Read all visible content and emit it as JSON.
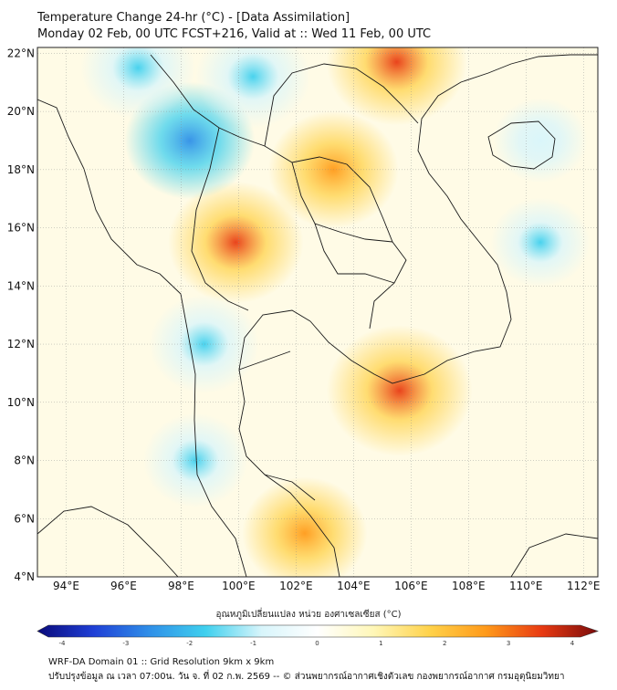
{
  "title": {
    "line1": "Temperature Change 24-hr (°C) - [Data Assimilation]",
    "line2": "Monday 02 Feb, 00 UTC FCST+216, Valid at :: Wed 11 Feb, 00 UTC"
  },
  "map": {
    "lon_ticks": [
      "94°E",
      "96°E",
      "98°E",
      "100°E",
      "102°E",
      "104°E",
      "106°E",
      "108°E",
      "110°E",
      "112°E"
    ],
    "lat_ticks": [
      "22°N",
      "20°N",
      "18°N",
      "16°N",
      "14°N",
      "12°N",
      "10°N",
      "8°N",
      "6°N",
      "4°N"
    ],
    "lon_range": [
      93,
      112.5
    ],
    "lat_range": [
      4,
      22.2
    ],
    "anomalies": [
      {
        "lon": 105.5,
        "lat": 21.7,
        "value": 3.0
      },
      {
        "lon": 103.3,
        "lat": 18.0,
        "value": 2.6
      },
      {
        "lon": 99.9,
        "lat": 15.5,
        "value": 2.8
      },
      {
        "lon": 105.6,
        "lat": 10.4,
        "value": 3.2
      },
      {
        "lon": 102.3,
        "lat": 5.5,
        "value": 2.4
      },
      {
        "lon": 98.3,
        "lat": 19.0,
        "value": -2.6
      },
      {
        "lon": 96.5,
        "lat": 21.5,
        "value": -2.0
      },
      {
        "lon": 100.5,
        "lat": 21.2,
        "value": -2.0
      },
      {
        "lon": 98.8,
        "lat": 12.0,
        "value": -1.8
      },
      {
        "lon": 98.5,
        "lat": 8.0,
        "value": -1.6
      },
      {
        "lon": 110.5,
        "lat": 15.5,
        "value": -1.4
      },
      {
        "lon": 110.5,
        "lat": 19.0,
        "value": -1.2
      }
    ]
  },
  "colorbar": {
    "title": "อุณหภูมิเปลี่ยนแปลง หน่วย องศาเซลเซียส (°C)",
    "ticks": [
      "-4",
      "-3",
      "-2",
      "-1",
      "0",
      "1",
      "2",
      "3",
      "4"
    ],
    "range": [
      -4,
      4
    ],
    "colors": [
      "#0a0a7a",
      "#1f3fd6",
      "#2f8fe8",
      "#3fd0ee",
      "#d8f5fb",
      "#ffffff",
      "#fff7b8",
      "#ffd24a",
      "#ff9a1a",
      "#e83a12",
      "#7a0b0b"
    ]
  },
  "footer": {
    "line1": "WRF-DA Domain 01 :: Grid Resolution 9km x 9km",
    "line2": "ปรับปรุงข้อมูล ณ เวลา 07:00น. วัน จ. ที่ 02 ก.พ. 2569 -- © ส่วนพยากรณ์อากาศเชิงตัวเลข กองพยากรณ์อากาศ กรมอุตุนิยมวิทยา"
  }
}
